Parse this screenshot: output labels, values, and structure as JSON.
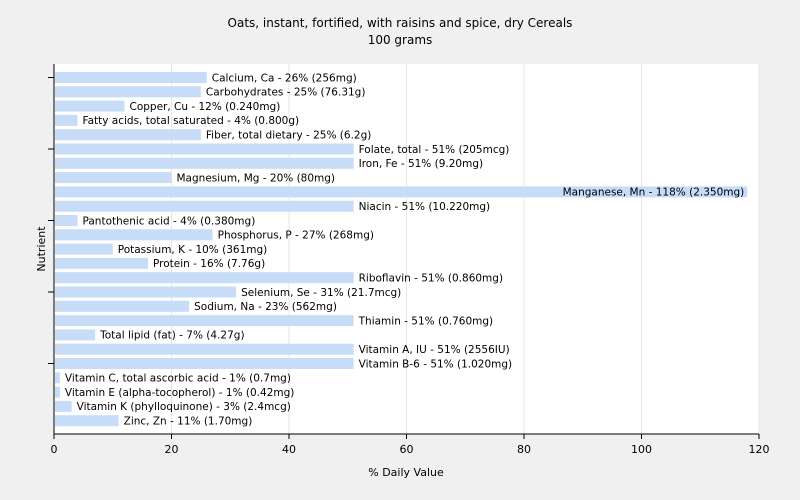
{
  "chart_data": {
    "type": "bar",
    "orientation": "horizontal",
    "title": "Oats, instant, fortified, with raisins and spice, dry Cereals",
    "subtitle": "100 grams",
    "xlabel": "% Daily Value",
    "ylabel": "Nutrient",
    "xlim": [
      0,
      120
    ],
    "xticks": [
      0,
      20,
      40,
      60,
      80,
      100,
      120
    ],
    "grid": true,
    "bar_color": "#c6dcf7",
    "categories": [
      "Calcium, Ca",
      "Carbohydrates",
      "Copper, Cu",
      "Fatty acids, total saturated",
      "Fiber, total dietary",
      "Folate, total",
      "Iron, Fe",
      "Magnesium, Mg",
      "Manganese, Mn",
      "Niacin",
      "Pantothenic acid",
      "Phosphorus, P",
      "Potassium, K",
      "Protein",
      "Riboflavin",
      "Selenium, Se",
      "Sodium, Na",
      "Thiamin",
      "Total lipid (fat)",
      "Vitamin A, IU",
      "Vitamin B-6",
      "Vitamin C, total ascorbic acid",
      "Vitamin E (alpha-tocopherol)",
      "Vitamin K (phylloquinone)",
      "Zinc, Zn"
    ],
    "values": [
      26,
      25,
      12,
      4,
      25,
      51,
      51,
      20,
      118,
      51,
      4,
      27,
      10,
      16,
      51,
      31,
      23,
      51,
      7,
      51,
      51,
      1,
      1,
      3,
      11
    ],
    "labels": [
      "Calcium, Ca - 26% (256mg)",
      "Carbohydrates - 25% (76.31g)",
      "Copper, Cu - 12% (0.240mg)",
      "Fatty acids, total saturated - 4% (0.800g)",
      "Fiber, total dietary - 25% (6.2g)",
      "Folate, total - 51% (205mcg)",
      "Iron, Fe - 51% (9.20mg)",
      "Magnesium, Mg - 20% (80mg)",
      "Manganese, Mn - 118% (2.350mg)",
      "Niacin - 51% (10.220mg)",
      "Pantothenic acid - 4% (0.380mg)",
      "Phosphorus, P - 27% (268mg)",
      "Potassium, K - 10% (361mg)",
      "Protein - 16% (7.76g)",
      "Riboflavin - 51% (0.860mg)",
      "Selenium, Se - 31% (21.7mcg)",
      "Sodium, Na - 23% (562mg)",
      "Thiamin - 51% (0.760mg)",
      "Total lipid (fat) - 7% (4.27g)",
      "Vitamin A, IU - 51% (2556IU)",
      "Vitamin B-6 - 51% (1.020mg)",
      "Vitamin C, total ascorbic acid - 1% (0.7mg)",
      "Vitamin E (alpha-tocopherol) - 1% (0.42mg)",
      "Vitamin K (phylloquinone) - 3% (2.4mcg)",
      "Zinc, Zn - 11% (1.70mg)"
    ]
  }
}
